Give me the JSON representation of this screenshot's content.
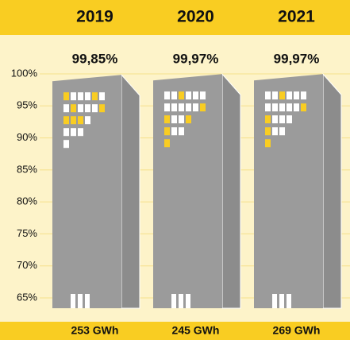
{
  "chart_data": {
    "type": "building",
    "categories": [
      "2019",
      "2020",
      "2021"
    ],
    "values": [
      99.85,
      99.97,
      99.97
    ],
    "value_labels": [
      "99,85%",
      "99,97%",
      "99,97%"
    ],
    "footer_labels": [
      "253 GWh",
      "245 GWh",
      "269 GWh"
    ],
    "ylim": [
      65,
      100
    ],
    "yticks": [
      {
        "value": 65,
        "label": "65%"
      },
      {
        "value": 70,
        "label": "70%"
      },
      {
        "value": 75,
        "label": "75%"
      },
      {
        "value": 80,
        "label": "80%"
      },
      {
        "value": 85,
        "label": "85%"
      },
      {
        "value": 90,
        "label": "90%"
      },
      {
        "value": 95,
        "label": "95%"
      },
      {
        "value": 100,
        "label": "100%"
      }
    ],
    "grid": true,
    "color": "#9b9b9b",
    "band_color": "#f9cd22"
  }
}
